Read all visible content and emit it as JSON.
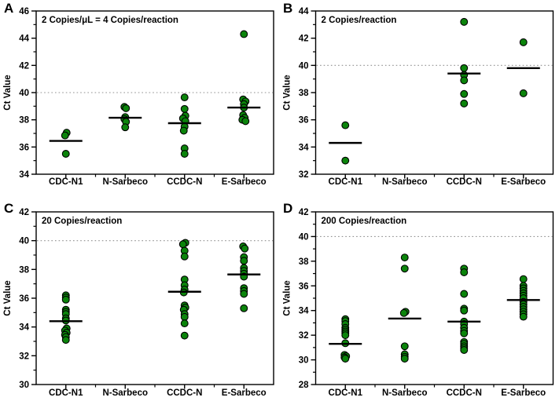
{
  "figure": {
    "background": "#ffffff",
    "point_fill": "#0b840b",
    "point_stroke": "#000000",
    "mean_line_color": "#000000",
    "cutoff_color": "#909090",
    "axis_color": "#000000",
    "text_color": "#000000"
  },
  "chart_data": [
    {
      "type": "scatter",
      "panel": "A",
      "title": "2 Copies/μL = 4 Copies/reaction",
      "ylabel": "Ct Value",
      "ylim": [
        34,
        46
      ],
      "yticks": [
        34,
        36,
        38,
        40,
        42,
        44,
        46
      ],
      "cutoff_line": 40,
      "grid": false,
      "categories": [
        "CDC-N1",
        "N-Sarbeco",
        "CCDC-N",
        "E-Sarbeco"
      ],
      "series": [
        {
          "name": "CDC-N1",
          "mean": 36.45,
          "values": [
            [
              37.05,
              1
            ],
            [
              36.85,
              -1
            ],
            35.5
          ]
        },
        {
          "name": "N-Sarbeco",
          "mean": 38.15,
          "values": [
            [
              38.95,
              -1
            ],
            [
              38.85,
              1
            ],
            38.2,
            [
              38.05,
              -1
            ],
            [
              37.85,
              1
            ],
            37.45
          ]
        },
        {
          "name": "CCDC-N",
          "mean": 37.75,
          "values": [
            39.65,
            38.8,
            [
              38.3,
              1
            ],
            [
              38.1,
              -2
            ],
            [
              37.9,
              1
            ],
            37.5,
            [
              37.2,
              -1
            ],
            35.9,
            35.5
          ]
        },
        {
          "name": "E-Sarbeco",
          "mean": 38.9,
          "values": [
            44.3,
            [
              39.5,
              -1
            ],
            [
              39.35,
              2
            ],
            39.15,
            38.9,
            [
              38.35,
              -1
            ],
            [
              38.15,
              1
            ],
            [
              38.0,
              -2
            ],
            [
              37.9,
              2
            ]
          ]
        }
      ]
    },
    {
      "type": "scatter",
      "panel": "B",
      "title": "2 Copies/reaction",
      "ylabel": "Ct Value",
      "ylim": [
        32,
        44
      ],
      "yticks": [
        32,
        34,
        36,
        38,
        40,
        42,
        44
      ],
      "cutoff_line": 40,
      "grid": false,
      "categories": [
        "CDC-N1",
        "N-Sarbeco",
        "CCDC-N",
        "E-Sarbeco"
      ],
      "series": [
        {
          "name": "CDC-N1",
          "mean": 34.3,
          "values": [
            35.6,
            33.0
          ]
        },
        {
          "name": "N-Sarbeco",
          "mean": null,
          "values": []
        },
        {
          "name": "CCDC-N",
          "mean": 39.4,
          "values": [
            43.2,
            39.8,
            39.3,
            38.9,
            37.9,
            37.2
          ]
        },
        {
          "name": "E-Sarbeco",
          "mean": 39.8,
          "values": [
            41.7,
            37.95
          ]
        }
      ]
    },
    {
      "type": "scatter",
      "panel": "C",
      "title": "20 Copies/reaction",
      "ylabel": "Ct Value",
      "ylim": [
        30,
        42
      ],
      "yticks": [
        30,
        32,
        34,
        36,
        38,
        40,
        42
      ],
      "cutoff_line": 40,
      "grid": false,
      "categories": [
        "CDC-N1",
        "N-Sarbeco",
        "CCDC-N",
        "E-Sarbeco"
      ],
      "series": [
        {
          "name": "CDC-N1",
          "mean": 34.4,
          "values": [
            36.2,
            36.05,
            35.9,
            35.2,
            35.05,
            34.9,
            34.6,
            34.45,
            [
              33.9,
              1
            ],
            [
              33.75,
              -1
            ],
            [
              33.6,
              1
            ],
            [
              33.45,
              -1
            ],
            33.3,
            33.1
          ]
        },
        {
          "name": "N-Sarbeco",
          "mean": null,
          "values": []
        },
        {
          "name": "CCDC-N",
          "mean": 36.45,
          "values": [
            [
              39.85,
              1
            ],
            [
              39.75,
              -2
            ],
            39.3,
            38.9,
            37.3,
            36.9,
            36.6,
            [
              36.4,
              -1
            ],
            35.5,
            [
              35.35,
              1
            ],
            [
              35.2,
              -1
            ],
            34.9,
            34.7,
            34.25,
            33.4
          ]
        },
        {
          "name": "E-Sarbeco",
          "mean": 37.65,
          "values": [
            [
              39.6,
              -1
            ],
            [
              39.45,
              1
            ],
            38.85,
            38.6,
            38.1,
            37.9,
            37.7,
            37.5,
            36.7,
            36.5,
            36.3,
            35.3
          ]
        }
      ]
    },
    {
      "type": "scatter",
      "panel": "D",
      "title": "200 Copies/reaction",
      "ylabel": "Ct Value",
      "ylim": [
        28,
        42
      ],
      "yticks": [
        28,
        30,
        32,
        34,
        36,
        38,
        40,
        42
      ],
      "cutoff_line": 40,
      "grid": false,
      "categories": [
        "CDC-N1",
        "N-Sarbeco",
        "CCDC-N",
        "E-Sarbeco"
      ],
      "series": [
        {
          "name": "CDC-N1",
          "mean": 31.3,
          "values": [
            33.3,
            33.15,
            32.9,
            32.6,
            32.45,
            32.3,
            32.15,
            32.0,
            31.35,
            [
              30.4,
              -1
            ],
            [
              30.3,
              1
            ],
            [
              30.2,
              -1
            ],
            30.1
          ]
        },
        {
          "name": "N-Sarbeco",
          "mean": 33.35,
          "values": [
            38.3,
            37.4,
            [
              33.9,
              1
            ],
            [
              33.8,
              -1
            ],
            31.1,
            30.45,
            30.25,
            30.1
          ]
        },
        {
          "name": "CCDC-N",
          "mean": 33.1,
          "values": [
            37.4,
            37.1,
            35.35,
            34.15,
            34.0,
            33.1,
            32.9,
            32.6,
            32.35,
            32.15,
            31.45,
            31.3,
            31.1,
            30.95,
            30.8
          ]
        },
        {
          "name": "E-Sarbeco",
          "mean": 34.85,
          "values": [
            36.55,
            36.0,
            35.8,
            35.6,
            35.4,
            35.2,
            35.0,
            34.7,
            34.5,
            34.3,
            34.1,
            33.9,
            33.7,
            33.5
          ]
        }
      ]
    }
  ]
}
